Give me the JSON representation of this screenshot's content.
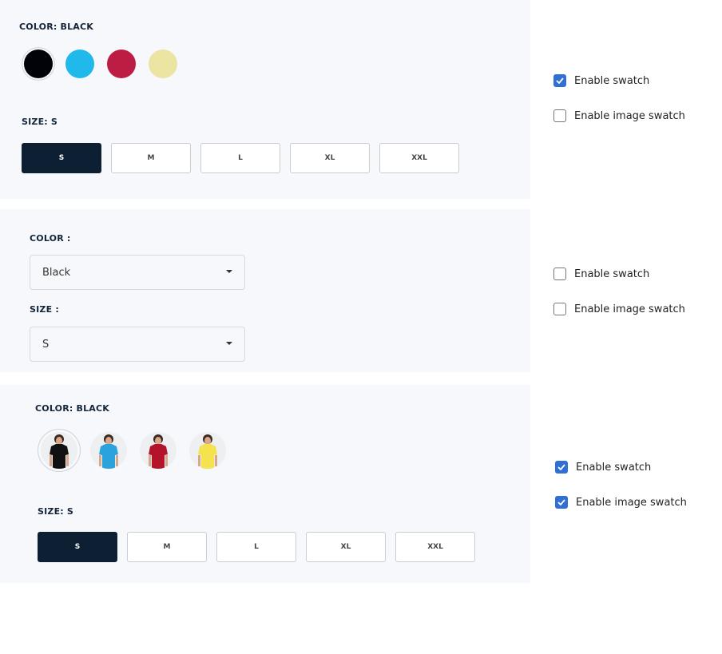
{
  "sections": [
    {
      "color_label": "COLOR: BLACK",
      "swatches": [
        {
          "name": "Black",
          "hex": "#020308"
        },
        {
          "name": "Blue",
          "hex": "#21b8ea"
        },
        {
          "name": "Red",
          "hex": "#bb1d43"
        },
        {
          "name": "Yellow",
          "hex": "#ece4a2"
        }
      ],
      "size_label": "SIZE: S",
      "sizes": [
        "S",
        "M",
        "L",
        "XL",
        "XXL"
      ],
      "selected_size": "S",
      "enable_swatch": true,
      "enable_image_swatch": false
    },
    {
      "color_label": "COLOR :",
      "color_value": "Black",
      "size_label": "SIZE :",
      "size_value": "S",
      "enable_swatch": false,
      "enable_image_swatch": false
    },
    {
      "color_label": "COLOR: BLACK",
      "image_swatches": [
        {
          "name": "Black",
          "hex": "#111111"
        },
        {
          "name": "Blue",
          "hex": "#2aa3dc"
        },
        {
          "name": "Red",
          "hex": "#b3142b"
        },
        {
          "name": "Yellow",
          "hex": "#f4e34c"
        }
      ],
      "size_label": "SIZE: S",
      "sizes": [
        "S",
        "M",
        "L",
        "XL",
        "XXL"
      ],
      "selected_size": "S",
      "enable_swatch": true,
      "enable_image_swatch": true
    }
  ],
  "checkbox_labels": {
    "swatch": "Enable swatch",
    "image_swatch": "Enable image swatch"
  }
}
